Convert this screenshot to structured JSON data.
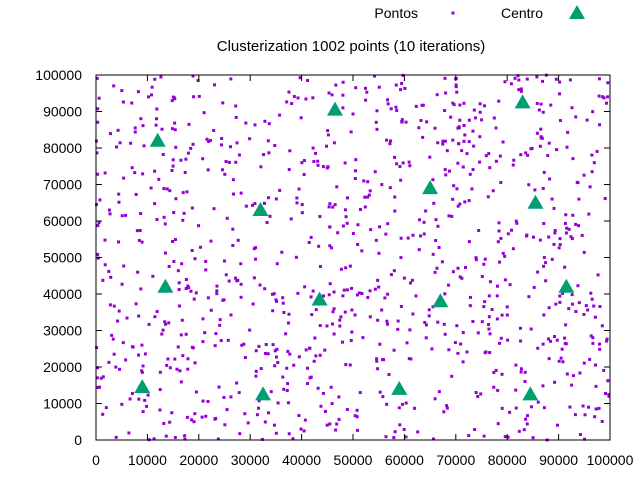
{
  "chart_data": {
    "type": "scatter",
    "title": "Clusterization 1002 points (10 iterations)",
    "xlabel": "",
    "ylabel": "",
    "xlim": [
      0,
      100000
    ],
    "ylim": [
      0,
      100000
    ],
    "x_ticks": [
      "0",
      "10000",
      "20000",
      "30000",
      "40000",
      "50000",
      "60000",
      "70000",
      "80000",
      "90000",
      "100000"
    ],
    "y_ticks": [
      "0",
      "10000",
      "20000",
      "30000",
      "40000",
      "50000",
      "60000",
      "70000",
      "80000",
      "90000",
      "100000"
    ],
    "grid": false,
    "legend_position": "top-right",
    "series": [
      {
        "name": "Pontos",
        "marker": "dot",
        "color": "#9400d3",
        "count": 1002,
        "distribution": "uniform",
        "x_range": [
          0,
          100000
        ],
        "y_range": [
          0,
          100000
        ]
      },
      {
        "name": "Centro",
        "marker": "triangle",
        "color": "#009e73",
        "points": [
          [
            12000,
            82000
          ],
          [
            46500,
            90500
          ],
          [
            83000,
            92500
          ],
          [
            32000,
            63000
          ],
          [
            65000,
            69000
          ],
          [
            85500,
            65000
          ],
          [
            13500,
            42000
          ],
          [
            43500,
            38500
          ],
          [
            67000,
            38000
          ],
          [
            91500,
            42000
          ],
          [
            9000,
            14500
          ],
          [
            32500,
            12500
          ],
          [
            59000,
            14000
          ],
          [
            84500,
            12500
          ]
        ]
      }
    ]
  }
}
